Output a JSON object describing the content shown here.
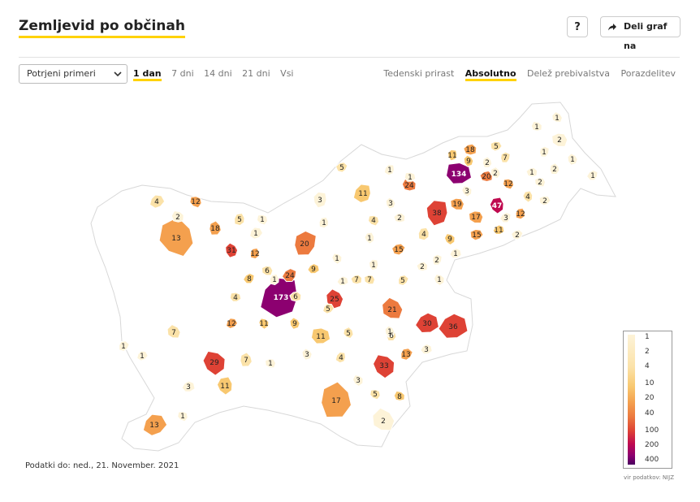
{
  "header": {
    "title": "Zemljevid po občinah",
    "help_label": "?",
    "share_label": "Deli graf na"
  },
  "controls": {
    "select_value": "Potrjeni primeri",
    "periods": [
      "1 dan",
      "7 dni",
      "14 dni",
      "21 dni",
      "Vsi"
    ],
    "active_period": "1 dan",
    "modes": [
      "Tedenski prirast",
      "Absolutno",
      "Delež prebivalstva",
      "Porazdelitev"
    ],
    "active_mode": "Absolutno"
  },
  "footer": {
    "date_note": "Podatki do: ned., 21. November. 2021",
    "source": "vir podatkov: NIJZ"
  },
  "legend": {
    "labels": [
      "1",
      "2",
      "4",
      "10",
      "20",
      "40",
      "100",
      "200",
      "400"
    ]
  },
  "map": {
    "region_labels": [
      "173",
      "134",
      "47",
      "38",
      "36",
      "33",
      "31",
      "30",
      "29",
      "25",
      "24",
      "24",
      "21",
      "20",
      "20",
      "19",
      "18",
      "18",
      "17",
      "17",
      "15",
      "15",
      "13",
      "13",
      "13",
      "12",
      "12",
      "12",
      "12",
      "12",
      "11",
      "11",
      "11",
      "11",
      "11",
      "11",
      "9",
      "9",
      "9",
      "9",
      "8",
      "8",
      "7",
      "7",
      "7",
      "7",
      "7",
      "6",
      "6",
      "6",
      "5",
      "5",
      "5",
      "5",
      "5",
      "5",
      "5",
      "4",
      "4",
      "4",
      "4",
      "4",
      "4",
      "3",
      "3",
      "3",
      "3",
      "3",
      "3",
      "3",
      "3",
      "2",
      "2",
      "2",
      "2",
      "2",
      "2",
      "2",
      "2",
      "2",
      "2",
      "2",
      "2",
      "1",
      "1",
      "1",
      "1",
      "1",
      "1",
      "1",
      "1",
      "1",
      "1",
      "1",
      "1",
      "1",
      "1",
      "1",
      "1",
      "1",
      "1",
      "1",
      "1",
      "1",
      "1",
      "1",
      "1"
    ]
  },
  "colors": {
    "accent": "#ffd200",
    "c0": "#ffffff",
    "c1": "#fdf3d8",
    "c2": "#fbe2a8",
    "c3": "#f8c870",
    "c4": "#f4a04e",
    "c5": "#ec7a3f",
    "c6": "#de4235",
    "c7": "#bf0a4f",
    "c8": "#8c0070",
    "c9": "#4a0060"
  }
}
